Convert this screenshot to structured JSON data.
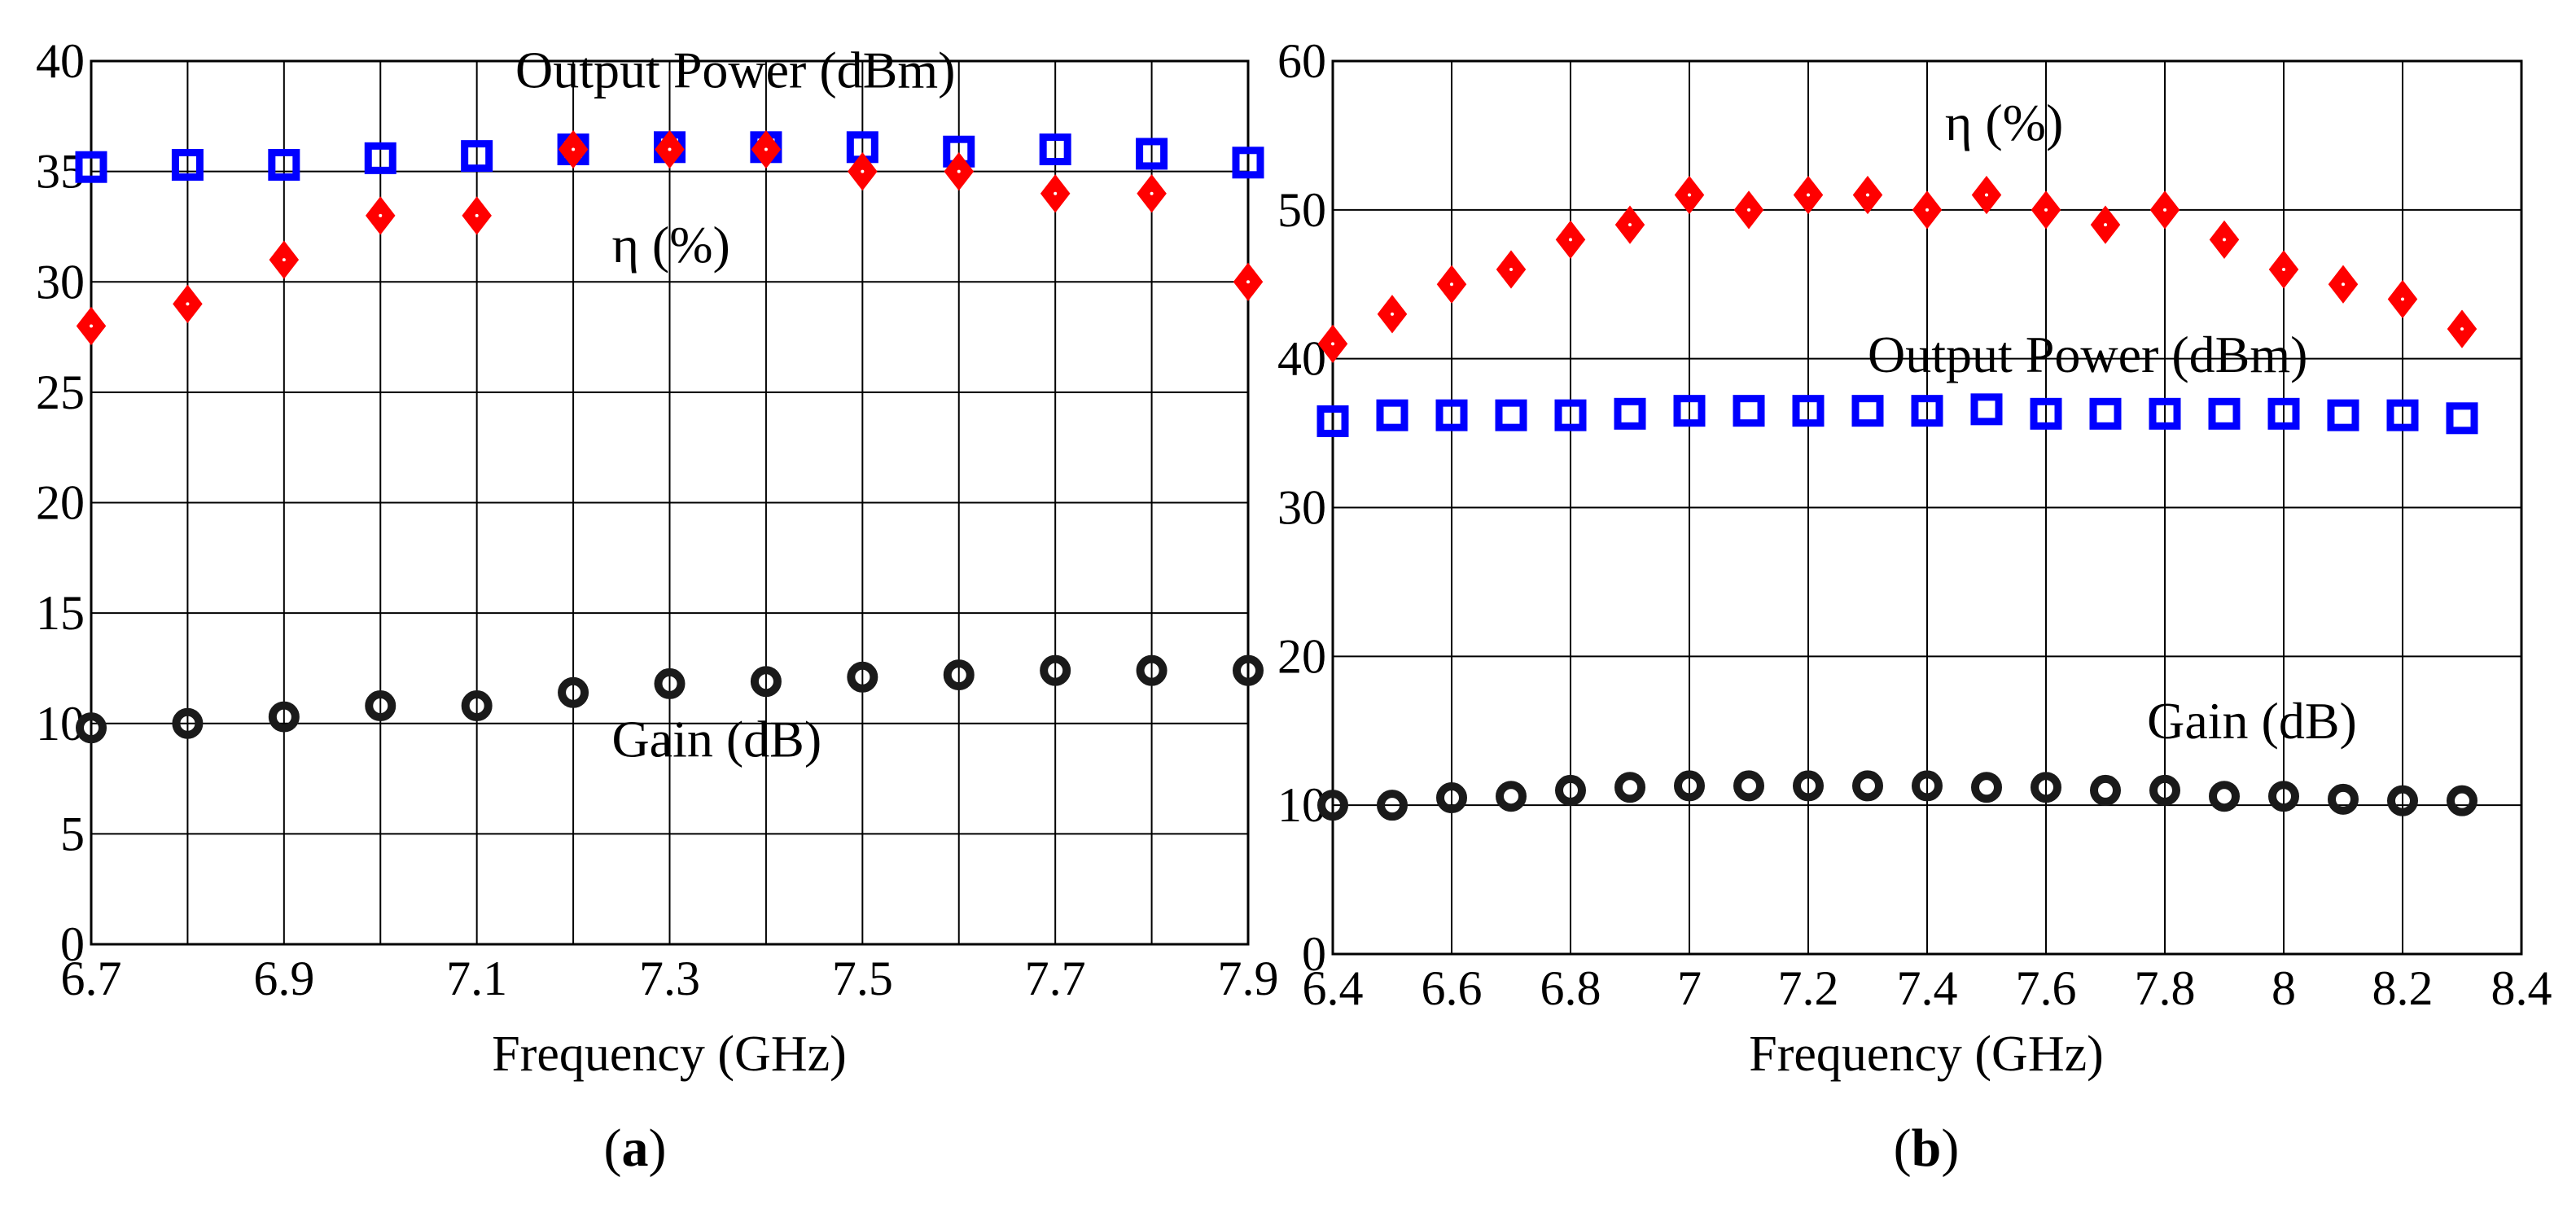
{
  "colors": {
    "output_power": "#0000ff",
    "efficiency": "#ff0000",
    "gain": "#1a1a1a",
    "grid": "#000000",
    "background": "#ffffff"
  },
  "chart_data": [
    {
      "id": "a",
      "type": "scatter",
      "caption": {
        "open": "(",
        "letter": "a",
        "close": ")"
      },
      "xlabel": "Frequency (GHz)",
      "ylabel": "",
      "xlim": [
        6.7,
        7.9
      ],
      "ylim": [
        0,
        40
      ],
      "xticks": [
        6.7,
        6.9,
        7.1,
        7.3,
        7.5,
        7.7,
        7.9
      ],
      "xtick_labels": [
        "6.7",
        "6.9",
        "7.1",
        "7.3",
        "7.5",
        "7.7",
        "7.9"
      ],
      "xgrid": [
        6.7,
        6.8,
        6.9,
        7.0,
        7.1,
        7.2,
        7.3,
        7.4,
        7.5,
        7.6,
        7.7,
        7.8,
        7.9
      ],
      "yticks": [
        0,
        5,
        10,
        15,
        20,
        25,
        30,
        35,
        40
      ],
      "ytick_labels": [
        "0",
        "5",
        "10",
        "15",
        "20",
        "25",
        "30",
        "35",
        "40"
      ],
      "grid": true,
      "x": [
        6.7,
        6.8,
        6.9,
        7.0,
        7.1,
        7.2,
        7.3,
        7.4,
        7.5,
        7.6,
        7.7,
        7.8,
        7.9
      ],
      "series": [
        {
          "name": "Output Power (dBm)",
          "key": "output_power",
          "marker": "square",
          "values": [
            35.2,
            35.3,
            35.3,
            35.6,
            35.7,
            36.0,
            36.1,
            36.1,
            36.1,
            35.9,
            36.0,
            35.8,
            35.4
          ]
        },
        {
          "name": "η (%)",
          "key": "efficiency",
          "marker": "diamond",
          "values": [
            28,
            29,
            31,
            33,
            33,
            36,
            36,
            36,
            35,
            35,
            34,
            34,
            30
          ]
        },
        {
          "name": "Gain (dB)",
          "key": "gain",
          "marker": "circle",
          "values": [
            9.8,
            10.0,
            10.3,
            10.8,
            10.8,
            11.4,
            11.8,
            11.9,
            12.1,
            12.2,
            12.4,
            12.4,
            12.4
          ]
        }
      ],
      "annotations": [
        {
          "text": "Output Power (dBm)",
          "at_x": 7.14,
          "at_y": 38.8,
          "anchor": "start"
        },
        {
          "text": "η (%)",
          "at_x": 7.24,
          "at_y": 30.9,
          "anchor": "start"
        },
        {
          "text": "Gain (dB)",
          "at_x": 7.24,
          "at_y": 8.5,
          "anchor": "start"
        }
      ]
    },
    {
      "id": "b",
      "type": "scatter",
      "caption": {
        "open": "(",
        "letter": "b",
        "close": ")"
      },
      "xlabel": "Frequency (GHz)",
      "ylabel": "",
      "xlim": [
        6.4,
        8.4
      ],
      "ylim": [
        0,
        60
      ],
      "xticks": [
        6.4,
        6.6,
        6.8,
        7.0,
        7.2,
        7.4,
        7.6,
        7.8,
        8.0,
        8.2,
        8.4
      ],
      "xtick_labels": [
        "6.4",
        "6.6",
        "6.8",
        "7",
        "7.2",
        "7.4",
        "7.6",
        "7.8",
        "8",
        "8.2",
        "8.4"
      ],
      "xgrid": [
        6.4,
        6.6,
        6.8,
        7.0,
        7.2,
        7.4,
        7.6,
        7.8,
        8.0,
        8.2,
        8.4
      ],
      "yticks": [
        0,
        10,
        20,
        30,
        40,
        50,
        60
      ],
      "ytick_labels": [
        "0",
        "10",
        "20",
        "30",
        "40",
        "50",
        "60"
      ],
      "grid": true,
      "x": [
        6.4,
        6.5,
        6.6,
        6.7,
        6.8,
        6.9,
        7.0,
        7.1,
        7.2,
        7.3,
        7.4,
        7.5,
        7.6,
        7.7,
        7.8,
        7.9,
        8.0,
        8.1,
        8.2,
        8.3
      ],
      "series": [
        {
          "name": "Output Power (dBm)",
          "key": "output_power",
          "marker": "square",
          "values": [
            35.8,
            36.2,
            36.2,
            36.2,
            36.2,
            36.3,
            36.5,
            36.5,
            36.5,
            36.5,
            36.5,
            36.6,
            36.3,
            36.3,
            36.3,
            36.3,
            36.3,
            36.2,
            36.2,
            36.0
          ]
        },
        {
          "name": "η (%)",
          "key": "efficiency",
          "marker": "diamond",
          "values": [
            41,
            43,
            45,
            46,
            48,
            49,
            51,
            50,
            51,
            51,
            50,
            51,
            50,
            49,
            50,
            48,
            46,
            45,
            44,
            42
          ]
        },
        {
          "name": "Gain (dB)",
          "key": "gain",
          "marker": "circle",
          "values": [
            10.0,
            10.0,
            10.5,
            10.6,
            11.0,
            11.2,
            11.3,
            11.3,
            11.3,
            11.3,
            11.3,
            11.2,
            11.2,
            11.0,
            11.0,
            10.6,
            10.6,
            10.4,
            10.3,
            10.3
          ]
        }
      ],
      "annotations": [
        {
          "text": "η (%)",
          "at_x": 7.43,
          "at_y": 54.7,
          "anchor": "start"
        },
        {
          "text": "Output Power (dBm)",
          "at_x": 7.3,
          "at_y": 39.1,
          "anchor": "start"
        },
        {
          "text": "Gain (dB)",
          "at_x": 7.77,
          "at_y": 14.5,
          "anchor": "start"
        }
      ]
    }
  ]
}
